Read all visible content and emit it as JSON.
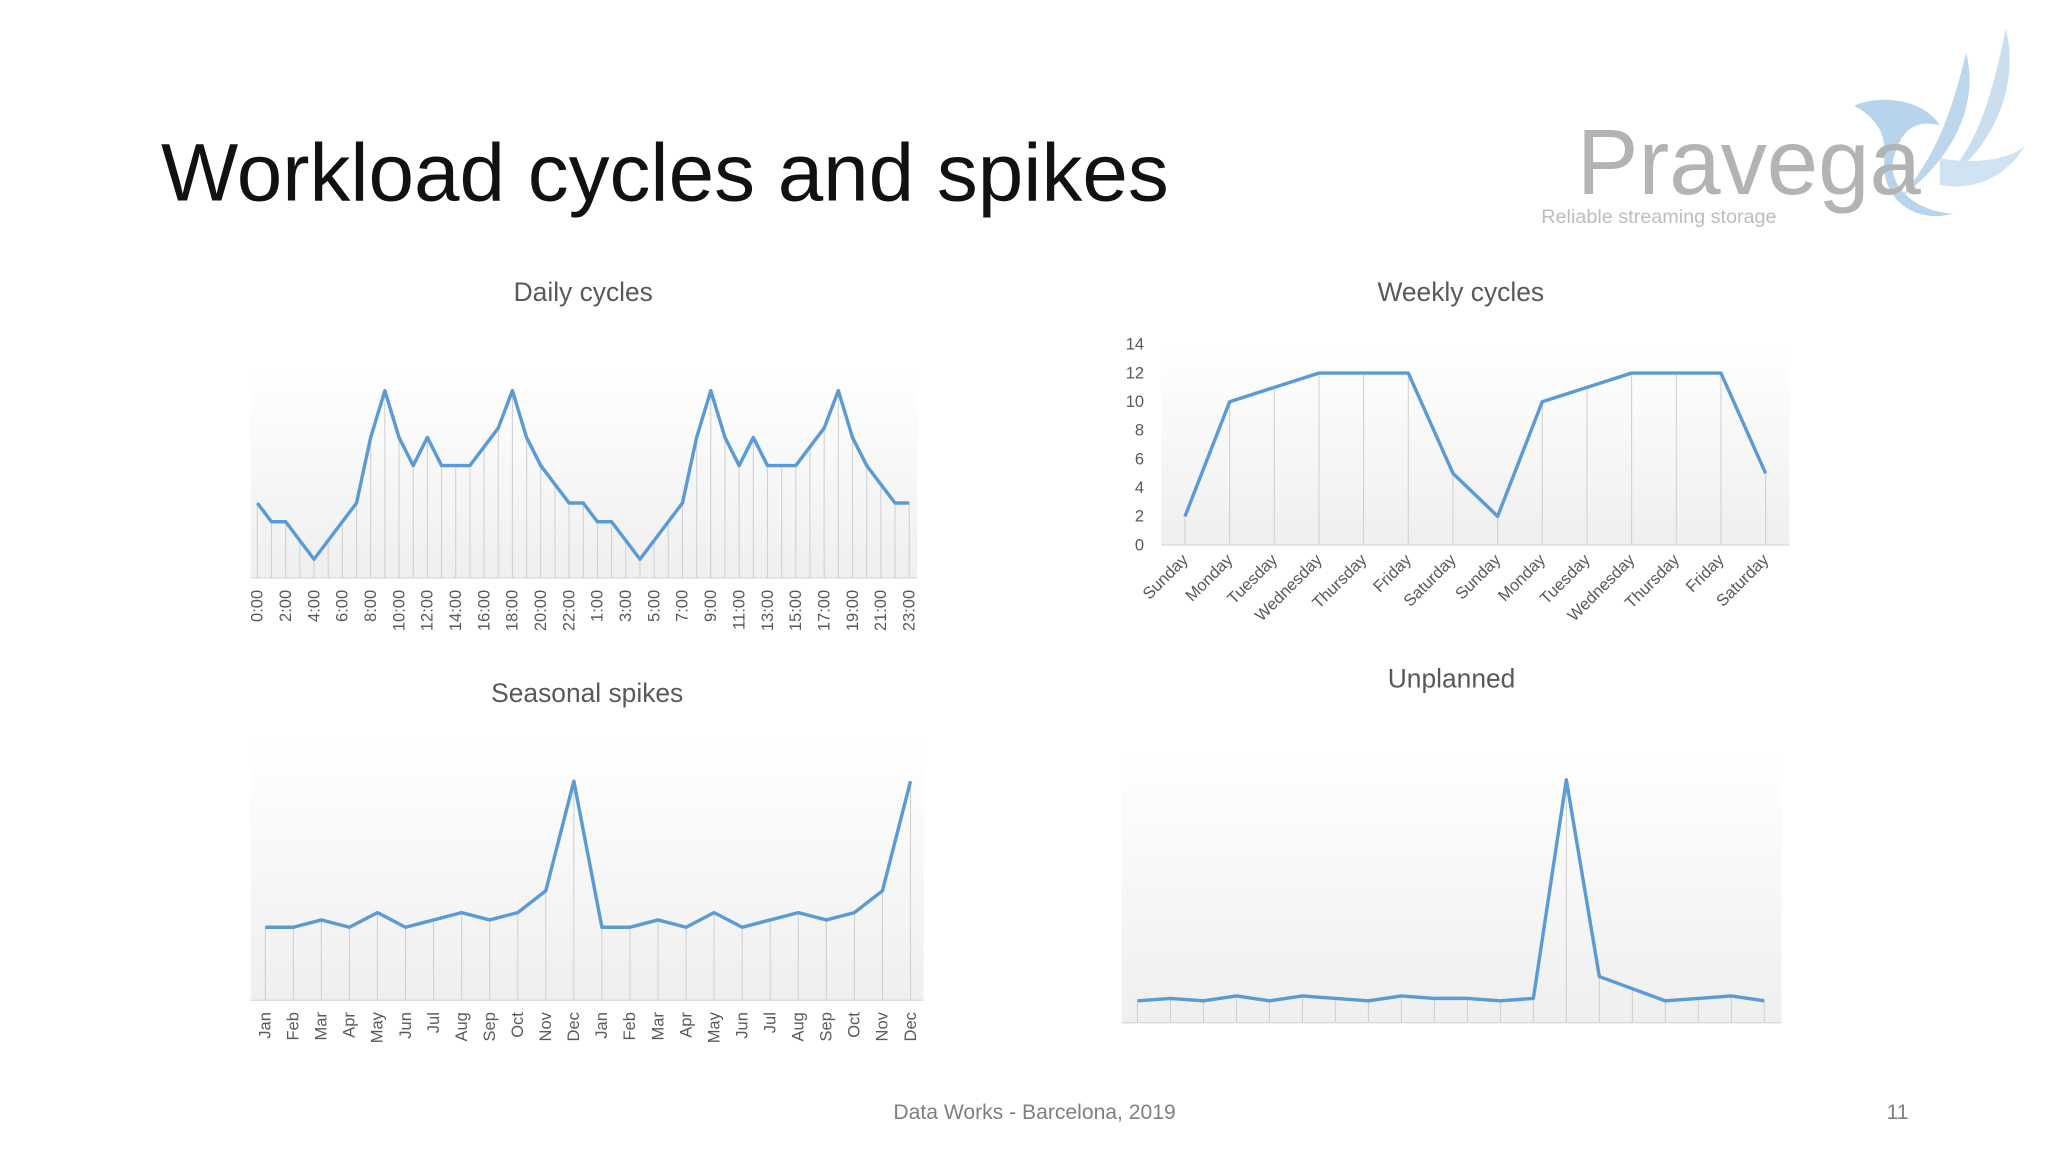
{
  "slide": {
    "title": "Workload cycles and spikes",
    "footer": "Data Works - Barcelona, 2019",
    "page_number": 11
  },
  "logo": {
    "name": "Pravega",
    "tagline": "Reliable streaming storage"
  },
  "chart_data": [
    {
      "type": "line",
      "title": "Daily cycles",
      "color": "#5b9bd5",
      "categories": [
        "0:00",
        null,
        "2:00",
        null,
        "4:00",
        null,
        "6:00",
        null,
        "8:00",
        null,
        "10:00",
        null,
        "12:00",
        null,
        "14:00",
        null,
        "16:00",
        null,
        "18:00",
        null,
        "20:00",
        null,
        "22:00",
        null,
        "1:00",
        null,
        "3:00",
        null,
        "5:00",
        null,
        "7:00",
        null,
        "9:00",
        null,
        "11:00",
        null,
        "13:00",
        null,
        "15:00",
        null,
        "17:00",
        null,
        "19:00",
        null,
        "21:00",
        null,
        "23:00"
      ],
      "values": [
        4,
        3,
        3,
        2,
        1,
        2,
        3,
        4,
        7.5,
        10,
        7.5,
        6,
        7.5,
        6,
        6,
        6,
        7,
        8,
        10,
        7.5,
        6,
        5,
        4,
        4,
        3,
        3,
        2,
        1,
        2,
        3,
        4,
        7.5,
        10,
        7.5,
        6,
        7.5,
        6,
        6,
        6,
        7,
        8,
        10,
        7.5,
        6,
        5,
        4,
        4
      ]
    },
    {
      "type": "line",
      "title": "Weekly cycles",
      "color": "#5b9bd5",
      "categories": [
        "Sunday",
        "Monday",
        "Tuesday",
        "Wednesday",
        "Thursday",
        "Friday",
        "Saturday",
        "Sunday",
        "Monday",
        "Tuesday",
        "Wednesday",
        "Thursday",
        "Friday",
        "Saturday"
      ],
      "values": [
        2,
        10,
        11,
        12,
        12,
        12,
        5,
        2,
        10,
        11,
        12,
        12,
        12,
        5
      ],
      "ylim": [
        0,
        14
      ],
      "yticks": [
        0,
        2,
        4,
        6,
        8,
        10,
        12,
        14
      ]
    },
    {
      "type": "line",
      "title": "Seasonal spikes",
      "color": "#5b9bd5",
      "categories": [
        "Jan",
        "Feb",
        "Mar",
        "Apr",
        "May",
        "Jun",
        "Jul",
        "Aug",
        "Sep",
        "Oct",
        "Nov",
        "Dec",
        "Jan",
        "Feb",
        "Mar",
        "Apr",
        "May",
        "Jun",
        "Jul",
        "Aug",
        "Sep",
        "Oct",
        "Nov",
        "Dec"
      ],
      "values": [
        10,
        10,
        11,
        10,
        12,
        10,
        11,
        12,
        11,
        12,
        15,
        30,
        10,
        10,
        11,
        10,
        12,
        10,
        11,
        12,
        11,
        12,
        15,
        30
      ]
    },
    {
      "type": "line",
      "title": "Unplanned",
      "color": "#5b9bd5",
      "values": [
        9,
        10,
        9,
        11,
        9,
        11,
        10,
        9,
        11,
        10,
        10,
        9,
        10,
        100,
        19,
        14,
        9,
        10,
        11,
        9
      ]
    }
  ]
}
